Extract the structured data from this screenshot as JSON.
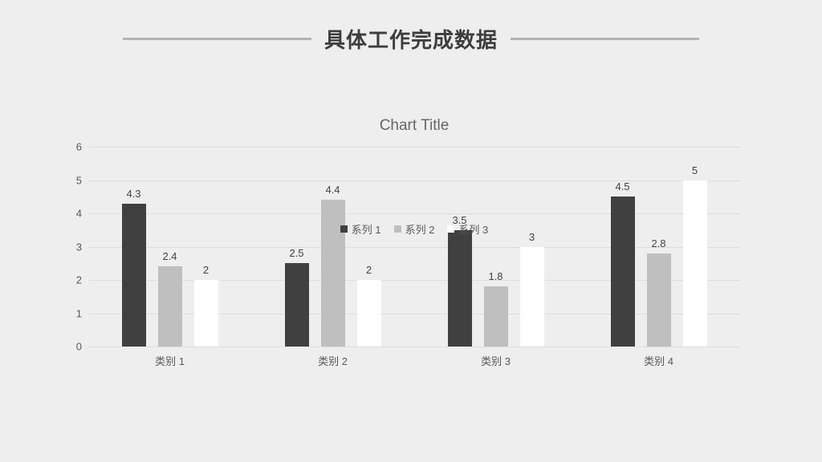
{
  "slide": {
    "title": "具体工作完成数据",
    "background_color": "#eeeeee",
    "divider_color": "#b3b3b3"
  },
  "chart_data": {
    "type": "bar",
    "title": "Chart Title",
    "categories": [
      "类别 1",
      "类别 2",
      "类别 3",
      "类别 4"
    ],
    "series": [
      {
        "name": "系列 1",
        "color": "#404040",
        "values": [
          4.3,
          2.5,
          3.5,
          4.5
        ]
      },
      {
        "name": "系列 2",
        "color": "#bfbfbf",
        "values": [
          2.4,
          4.4,
          1.8,
          2.8
        ]
      },
      {
        "name": "系列 3",
        "color": "#ffffff",
        "values": [
          2,
          2,
          3,
          5
        ]
      }
    ],
    "ylim": [
      0,
      6
    ],
    "yticks": [
      0,
      1,
      2,
      3,
      4,
      5,
      6
    ],
    "grid": true,
    "legend_position": "bottom",
    "data_labels": true,
    "xlabel": "",
    "ylabel": ""
  }
}
